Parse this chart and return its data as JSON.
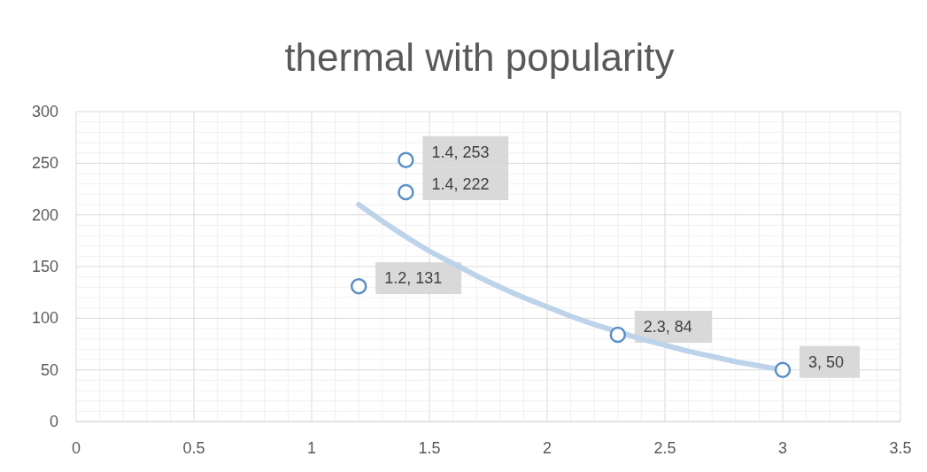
{
  "chart_data": {
    "type": "scatter",
    "title": "thermal with popularity",
    "xlim": [
      0,
      3.5
    ],
    "xticks": [
      0,
      {
        "value": 0.5,
        "label": "0.5"
      },
      1,
      {
        "value": 1.5,
        "label": "1.5"
      },
      2,
      {
        "value": 2.5,
        "label": "2.5"
      },
      3,
      {
        "value": 3.5,
        "label": "3.5"
      }
    ],
    "ylim": [
      0,
      300
    ],
    "yticks": [
      0,
      50,
      100,
      150,
      200,
      250,
      300
    ],
    "grid": true,
    "series": [
      {
        "color": "#5b8fc9",
        "marker": "circle",
        "x": [
          1.4,
          1.4,
          1.2,
          2.3,
          3
        ],
        "values": [
          253,
          222,
          131,
          84,
          50
        ],
        "value_labels": [
          "1.4, 253",
          "1.4, 222",
          "1.2, 131",
          "2.3, 84",
          "3, 50"
        ]
      },
      {
        "type": "line",
        "color": "#bdd3ea",
        "line_style": "solid",
        "x": [
          1.2,
          1.3,
          1.4,
          1.5,
          1.6,
          1.7,
          1.8,
          1.9,
          2.0,
          2.1,
          2.2,
          2.3,
          2.4,
          2.5,
          2.6,
          2.7,
          2.8,
          2.9,
          3.0
        ],
        "values": [
          210,
          194,
          179,
          165,
          153,
          141,
          130,
          120,
          111,
          102,
          94,
          87,
          80,
          74,
          68,
          63,
          58,
          54,
          50
        ]
      }
    ]
  }
}
